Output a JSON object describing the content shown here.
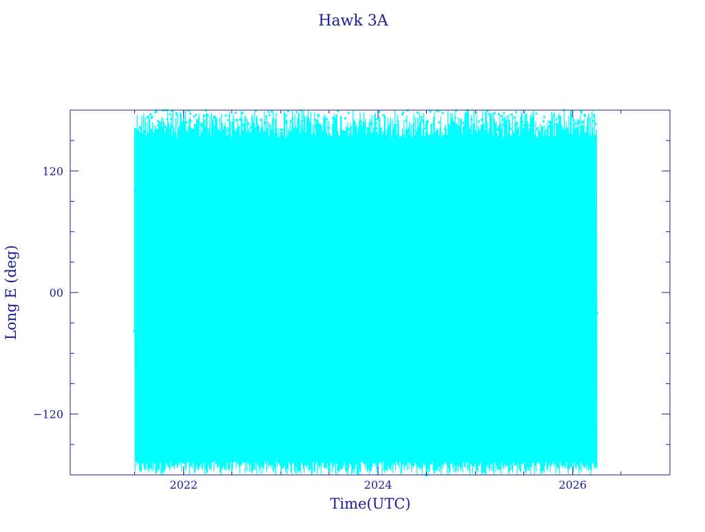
{
  "chart_data": {
    "type": "line",
    "title": "Hawk 3A",
    "xlabel": "Time(UTC)",
    "ylabel": "Long E (deg)",
    "x_tick_labels": [
      "2022",
      "2024",
      "2026"
    ],
    "y_tick_labels": [
      "120",
      "00",
      "−120"
    ],
    "xlim": [
      "2020-11-01",
      "2027-01-01"
    ],
    "ylim": [
      -180,
      180
    ],
    "x_ticks": [
      "2022-01-01",
      "2024-01-01",
      "2026-01-01"
    ],
    "y_ticks": [
      120,
      0,
      -120
    ],
    "grid": false,
    "legend": "none",
    "data_range": [
      "2021-07-01",
      "2026-04-01"
    ],
    "colors": {
      "series": "#00ffff",
      "axes": "#1a1a99"
    },
    "series": [
      {
        "x": [
          "2021-07-01",
          "2021-09-01",
          "2021-11-01",
          "2022-01-01",
          "2022-03-01",
          "2022-05-01",
          "2022-07-01",
          "2022-09-01",
          "2022-11-01",
          "2023-01-01",
          "2023-03-01",
          "2023-05-01",
          "2023-07-01",
          "2023-09-01",
          "2023-11-01",
          "2024-01-01",
          "2024-03-01",
          "2024-05-01",
          "2024-07-01",
          "2024-09-01",
          "2024-11-01",
          "2025-01-01",
          "2025-03-01",
          "2025-05-01",
          "2025-07-01",
          "2025-09-01",
          "2025-11-01",
          "2026-01-01",
          "2026-03-01",
          "2026-04-01"
        ],
        "y": [
          -38,
          160,
          -95,
          120,
          -170,
          90,
          -150,
          70,
          -100,
          150,
          -90,
          110,
          -175,
          80,
          -95,
          130,
          -100,
          90,
          -180,
          120,
          -90,
          60,
          -95,
          150,
          -100,
          80,
          -95,
          100,
          -60,
          -20
        ]
      }
    ]
  }
}
